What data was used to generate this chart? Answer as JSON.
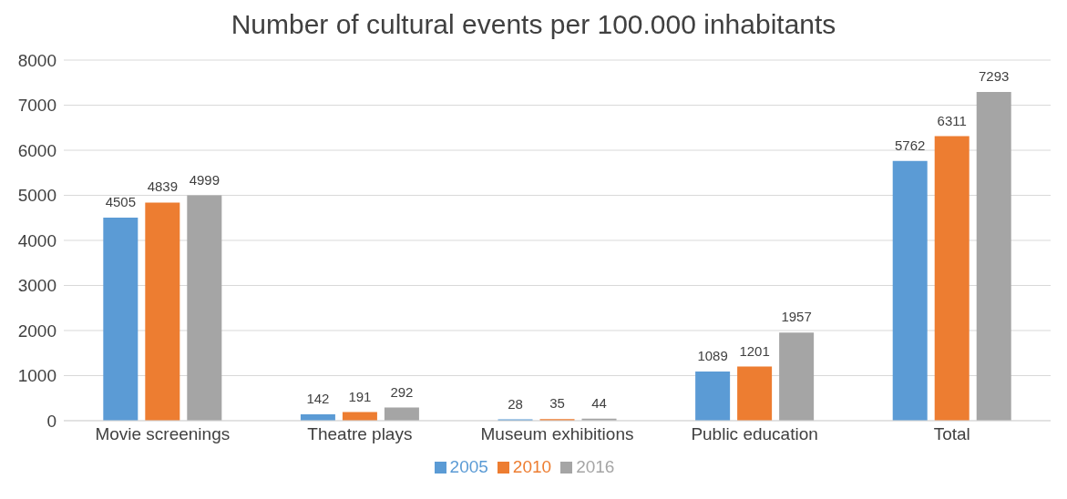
{
  "chart_data": {
    "type": "bar",
    "title": "Number of cultural events per 100.000 inhabitants",
    "categories": [
      "Movie screenings",
      "Theatre plays",
      "Museum exhibitions",
      "Public education",
      "Total"
    ],
    "series": [
      {
        "name": "2005",
        "color": "#5b9bd5",
        "values": [
          4505,
          142,
          28,
          1089,
          5762
        ]
      },
      {
        "name": "2010",
        "color": "#ed7d31",
        "values": [
          4839,
          191,
          35,
          1201,
          6311
        ]
      },
      {
        "name": "2016",
        "color": "#a5a5a5",
        "values": [
          4999,
          292,
          44,
          1957,
          7293
        ]
      }
    ],
    "ylim": [
      0,
      8000
    ],
    "yticks": [
      0,
      1000,
      2000,
      3000,
      4000,
      5000,
      6000,
      7000,
      8000
    ],
    "grid": "y",
    "legend": "bottom",
    "data_labels": true
  }
}
